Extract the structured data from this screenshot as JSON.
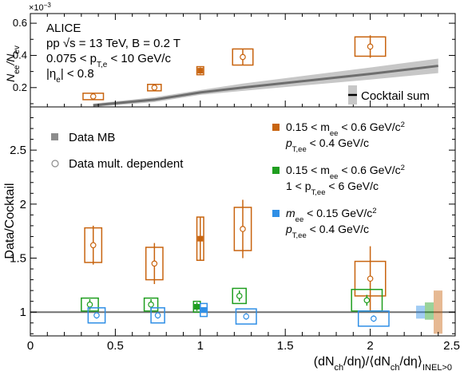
{
  "colors": {
    "orange": "#c8640f",
    "green": "#1f9e1f",
    "blue": "#2f8fe6",
    "grey": "#8c8c8c",
    "band": "#c7c7c7",
    "line": "#6e6e6e",
    "ref": "#707070"
  },
  "top": {
    "exponent": "×10",
    "exponent_power": "−3",
    "ylabel": "N",
    "ylabel_sub1": "ee",
    "ylabel_mid": "/N",
    "ylabel_sub2": "ev",
    "yticks": [
      "0.2",
      "0.4",
      "0.6"
    ],
    "info": {
      "l1": "ALICE",
      "l2": "pp √s = 13 TeV, B = 0.2 T",
      "l3": "0.075 < p",
      "l3_sub": "T,e",
      "l3_end": " < 10 GeV/c",
      "l4": "|η",
      "l4_sub": "e",
      "l4_end": "| < 0.8"
    },
    "legend": "Cocktail sum"
  },
  "bottom": {
    "ylabel": "Data/Cocktail",
    "xlabel": "(dN",
    "xlabel_sub1": "ch",
    "xlabel_mid": "/dη)/⟨dN",
    "xlabel_sub2": "ch",
    "xlabel_end": "/dη⟩",
    "xlabel_sub3": "INEL>0",
    "yticks": [
      "1",
      "1.5",
      "2",
      "2.5"
    ],
    "xticks": [
      "0",
      "0.5",
      "1",
      "1.5",
      "2",
      "2.5"
    ],
    "legend": {
      "mb": "Data MB",
      "mult": "Data mult. dependent",
      "o1": "0.15 < m",
      "o1_sub": "ee",
      "o1_end": " < 0.6 GeV/c",
      "o1_sup": "2",
      "o2": "p",
      "o2_sub": "T,ee",
      "o2_end": " < 0.4 GeV/c",
      "g1": "0.15 < m",
      "g1_sub": "ee",
      "g1_end": " < 0.6 GeV/c",
      "g1_sup": "2",
      "g2": "1 < p",
      "g2_sub": "T,ee",
      "g2_end": " < 6 GeV/c",
      "b1": "m",
      "b1_sub": "ee",
      "b1_end": " < 0.15 GeV/c",
      "b1_sup": "2",
      "b2": "p",
      "b2_sub": "T,ee",
      "b2_end": " < 0.4 GeV/c"
    }
  },
  "chart_data": [
    {
      "type": "scatter",
      "panel": "top",
      "ylabel": "N_ee/N_ev",
      "exponent": "×10^−3",
      "ylim": [
        0.08,
        0.66
      ],
      "xlim": [
        0,
        2.5
      ],
      "data_mult": [
        {
          "x": 0.37,
          "y": 0.145,
          "ystat": 0.01,
          "sysx": 0.06,
          "sysy": 0.02
        },
        {
          "x": 0.73,
          "y": 0.2,
          "ystat": 0.015,
          "sysx": 0.04,
          "sysy": 0.02
        },
        {
          "x": 1.25,
          "y": 0.39,
          "ystat": 0.05,
          "sysx": 0.06,
          "sysy": 0.05
        },
        {
          "x": 2.0,
          "y": 0.455,
          "ystat": 0.07,
          "sysx": 0.09,
          "sysy": 0.06
        }
      ],
      "data_mb": {
        "x": 1.0,
        "y": 0.305,
        "ystat": 0.02,
        "sysx": 0.02,
        "sysy": 0.025
      },
      "cocktail": {
        "x": [
          0.37,
          0.73,
          1.0,
          1.25,
          2.0,
          2.4
        ],
        "y": [
          0.09,
          0.125,
          0.17,
          0.2,
          0.285,
          0.335
        ],
        "band_low": [
          0.08,
          0.11,
          0.155,
          0.18,
          0.25,
          0.29
        ],
        "band_high": [
          0.1,
          0.14,
          0.185,
          0.225,
          0.325,
          0.38
        ]
      }
    },
    {
      "type": "scatter",
      "panel": "bottom",
      "ylabel": "Data/Cocktail",
      "xlabel": "(dN_ch/dη)/⟨dN_ch/dη⟩_INEL>0",
      "xlim": [
        0,
        2.5
      ],
      "ylim": [
        0.78,
        2.9
      ],
      "reference_line": 1.0,
      "series": [
        {
          "name": "0.15 < m_ee < 0.6 GeV/c², p_T,ee < 0.4 GeV/c",
          "color": "orange",
          "mult": [
            {
              "x": 0.37,
              "y": 1.62,
              "ystat": 0.18,
              "sysx": 0.05,
              "sysy": 0.16
            },
            {
              "x": 0.73,
              "y": 1.45,
              "ystat": 0.19,
              "sysx": 0.05,
              "sysy": 0.15
            },
            {
              "x": 1.25,
              "y": 1.77,
              "ystat": 0.27,
              "sysx": 0.05,
              "sysy": 0.2
            },
            {
              "x": 2.0,
              "y": 1.31,
              "ystat": 0.3,
              "sysx": 0.09,
              "sysy": 0.16
            }
          ],
          "mb": {
            "x": 1.0,
            "y": 1.68,
            "ystat": 0.2,
            "sysx": 0.02,
            "sysy": 0.2
          }
        },
        {
          "name": "0.15 < m_ee < 0.6 GeV/c², 1 < p_T,ee < 6 GeV/c",
          "color": "green",
          "mult": [
            {
              "x": 0.35,
              "y": 1.07,
              "ystat": 0.05,
              "sysx": 0.05,
              "sysy": 0.06
            },
            {
              "x": 0.71,
              "y": 1.07,
              "ystat": 0.05,
              "sysx": 0.04,
              "sysy": 0.06
            },
            {
              "x": 1.23,
              "y": 1.15,
              "ystat": 0.05,
              "sysx": 0.04,
              "sysy": 0.07
            },
            {
              "x": 1.98,
              "y": 1.11,
              "ystat": 0.05,
              "sysx": 0.09,
              "sysy": 0.1
            }
          ],
          "mb": {
            "x": 0.98,
            "y": 1.05,
            "ystat": 0.04,
            "sysx": 0.02,
            "sysy": 0.05
          }
        },
        {
          "name": "m_ee < 0.15 GeV/c², p_T,ee < 0.4 GeV/c",
          "color": "blue",
          "mult": [
            {
              "x": 0.39,
              "y": 0.97,
              "ystat": 0.03,
              "sysx": 0.05,
              "sysy": 0.07
            },
            {
              "x": 0.75,
              "y": 0.97,
              "ystat": 0.03,
              "sysx": 0.04,
              "sysy": 0.07
            },
            {
              "x": 1.27,
              "y": 0.96,
              "ystat": 0.03,
              "sysx": 0.06,
              "sysy": 0.07
            },
            {
              "x": 2.02,
              "y": 0.94,
              "ystat": 0.03,
              "sysx": 0.09,
              "sysy": 0.07
            }
          ],
          "mb": {
            "x": 1.02,
            "y": 1.02,
            "ystat": 0.02,
            "sysx": 0.02,
            "sysy": 0.06
          }
        }
      ],
      "global_uncertainty_boxes": [
        {
          "color": "blue",
          "low": 0.94,
          "high": 1.06
        },
        {
          "color": "green",
          "low": 0.93,
          "high": 1.09
        },
        {
          "color": "orange",
          "low": 0.8,
          "high": 1.2
        }
      ]
    }
  ]
}
